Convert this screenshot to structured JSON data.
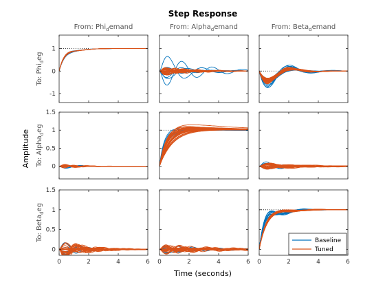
{
  "chart_data": {
    "type": "line",
    "title": "Step Response",
    "xlabel": "Time (seconds)",
    "ylabel": "Amplitude",
    "xlim": [
      0,
      6
    ],
    "x_ticks": [
      "0",
      "2",
      "4",
      "6"
    ],
    "grid": false,
    "legend": {
      "placement": "bottom-right",
      "entries": [
        "Baseline",
        "Tuned"
      ]
    },
    "colors": {
      "Baseline": "#0072bd",
      "Tuned": "#d95319",
      "axes": "#262626",
      "reference": "#000000"
    },
    "columns": [
      {
        "label": "From: Phi",
        "subscript": "d",
        "rest": "emand"
      },
      {
        "label": "From: Alpha",
        "subscript": "d",
        "rest": "emand"
      },
      {
        "label": "From: Beta",
        "subscript": "d",
        "rest": "emand"
      }
    ],
    "rows": [
      {
        "label": "To: Phi",
        "subscript": "d",
        "rest": "eg",
        "ylim": [
          -1.4,
          1.6
        ],
        "y_ticks": [
          -1,
          0,
          1
        ],
        "y_tick_labels": [
          "-1",
          "0",
          "1"
        ]
      },
      {
        "label": "To: Alpha",
        "subscript": "d",
        "rest": "eg",
        "ylim": [
          -0.35,
          1.5
        ],
        "y_ticks": [
          0,
          0.5,
          1,
          1.5
        ],
        "y_tick_labels": [
          "0",
          "0.5",
          "1",
          "1.5"
        ]
      },
      {
        "label": "To: Beta",
        "subscript": "d",
        "rest": "eg",
        "ylim": [
          -0.15,
          1.5
        ],
        "y_ticks": [
          0,
          0.5,
          1,
          1.5
        ],
        "y_tick_labels": [
          "0",
          "0.5",
          "1",
          "1.5"
        ]
      }
    ],
    "panels": [
      {
        "row": 0,
        "col": 0,
        "type": "step",
        "final": 1,
        "base": {
          "amp": [
            0.25,
            0.45
          ],
          "freq": [
            2.0,
            2.6
          ],
          "decay": [
            1.5,
            2.1
          ],
          "n": 6
        },
        "tuned": {
          "amp": [
            0.3,
            0.42
          ],
          "freq": [
            2.1,
            2.4
          ],
          "decay": [
            1.6,
            1.9
          ],
          "n": 8
        }
      },
      {
        "row": 0,
        "col": 1,
        "type": "coupling",
        "final": 0,
        "base": {
          "amp": [
            -1.1,
            1.1
          ],
          "freq": [
            2.0,
            4.0
          ],
          "decay": [
            0.4,
            0.8
          ],
          "n": 12
        },
        "tuned": {
          "amp": [
            -0.25,
            0.25
          ],
          "freq": [
            2.5,
            5.0
          ],
          "decay": [
            0.4,
            0.8
          ],
          "n": 30
        }
      },
      {
        "row": 0,
        "col": 2,
        "type": "dip",
        "final": 0,
        "base": {
          "amp": [
            -1.4,
            -0.7
          ],
          "freq": [
            1.8,
            2.8
          ],
          "decay": [
            0.7,
            1.1
          ],
          "n": 10
        },
        "tuned": {
          "amp": [
            -1.0,
            -0.6
          ],
          "freq": [
            2.0,
            2.6
          ],
          "decay": [
            0.8,
            1.1
          ],
          "n": 30
        }
      },
      {
        "row": 1,
        "col": 0,
        "type": "coupling",
        "final": 0,
        "base": {
          "amp": [
            -0.12,
            0.12
          ],
          "freq": [
            3.0,
            5.0
          ],
          "decay": [
            0.8,
            1.3
          ],
          "n": 8
        },
        "tuned": {
          "amp": [
            -0.08,
            0.08
          ],
          "freq": [
            3.0,
            5.0
          ],
          "decay": [
            0.6,
            1.2
          ],
          "n": 20
        }
      },
      {
        "row": 1,
        "col": 1,
        "type": "slow",
        "final": 1,
        "base": {
          "amp": [
            0.15,
            0.4
          ],
          "freq": [
            1.5,
            2.5
          ],
          "decay": [
            0.8,
            1.5
          ],
          "n": 10
        },
        "tuned": {
          "amp": [
            0.05,
            0.35
          ],
          "freq": [
            1.0,
            2.0
          ],
          "decay": [
            0.25,
            0.6
          ],
          "n": 30
        }
      },
      {
        "row": 1,
        "col": 2,
        "type": "coupling",
        "final": 0,
        "base": {
          "amp": [
            -0.2,
            0.2
          ],
          "freq": [
            2.5,
            4.0
          ],
          "decay": [
            0.5,
            0.9
          ],
          "n": 8
        },
        "tuned": {
          "amp": [
            -0.12,
            0.12
          ],
          "freq": [
            1.5,
            3.0
          ],
          "decay": [
            0.3,
            0.6
          ],
          "n": 30
        }
      },
      {
        "row": 2,
        "col": 0,
        "type": "coupling",
        "final": 0,
        "base": {
          "amp": [
            -0.3,
            0.3
          ],
          "freq": [
            2.5,
            4.0
          ],
          "decay": [
            0.6,
            1.0
          ],
          "n": 8
        },
        "tuned": {
          "amp": [
            -0.35,
            0.35
          ],
          "freq": [
            2.5,
            4.5
          ],
          "decay": [
            0.5,
            0.9
          ],
          "n": 30
        }
      },
      {
        "row": 2,
        "col": 1,
        "type": "coupling",
        "final": 0,
        "base": {
          "amp": [
            -0.15,
            0.15
          ],
          "freq": [
            2.0,
            4.0
          ],
          "decay": [
            0.3,
            0.6
          ],
          "n": 10
        },
        "tuned": {
          "amp": [
            -0.15,
            0.15
          ],
          "freq": [
            2.0,
            5.0
          ],
          "decay": [
            0.25,
            0.55
          ],
          "n": 30
        }
      },
      {
        "row": 2,
        "col": 2,
        "type": "step",
        "final": 1,
        "base": {
          "amp": [
            0.2,
            0.5
          ],
          "freq": [
            2.2,
            3.0
          ],
          "decay": [
            0.9,
            1.4
          ],
          "n": 10
        },
        "tuned": {
          "amp": [
            0.05,
            0.2
          ],
          "freq": [
            1.2,
            2.0
          ],
          "decay": [
            0.5,
            0.9
          ],
          "n": 30
        }
      }
    ]
  }
}
